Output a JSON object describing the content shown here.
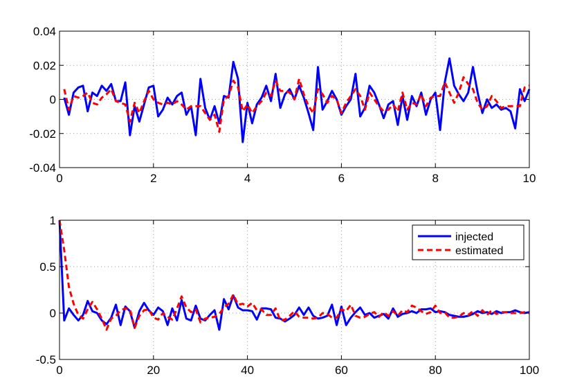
{
  "colors": {
    "injected": "#0000ff",
    "estimated": "#ff0000",
    "grid": "#9a9a9a",
    "axes": "#000000"
  },
  "chart_data": [
    {
      "type": "line",
      "xlim": [
        0,
        10
      ],
      "ylim": [
        -0.04,
        0.04
      ],
      "grid": true,
      "x_ticks": [
        0,
        2,
        4,
        6,
        8,
        10
      ],
      "x_tick_labels": [
        "0",
        "2",
        "4",
        "6",
        "8",
        "10"
      ],
      "y_ticks": [
        0.04,
        0.02,
        0,
        -0.02,
        -0.04
      ],
      "y_tick_labels": [
        "0.04",
        "0.02",
        "0",
        "-0.02",
        "-0.04"
      ],
      "x": [
        0.1,
        0.2,
        0.3,
        0.4,
        0.5,
        0.6,
        0.7,
        0.8,
        0.9,
        1.0,
        1.1,
        1.2,
        1.3,
        1.4,
        1.5,
        1.6,
        1.7,
        1.8,
        1.9,
        2.0,
        2.1,
        2.2,
        2.3,
        2.4,
        2.5,
        2.6,
        2.7,
        2.8,
        2.9,
        3.0,
        3.1,
        3.2,
        3.3,
        3.4,
        3.5,
        3.6,
        3.7,
        3.8,
        3.9,
        4.0,
        4.1,
        4.2,
        4.3,
        4.4,
        4.5,
        4.6,
        4.7,
        4.8,
        4.9,
        5.0,
        5.1,
        5.2,
        5.3,
        5.4,
        5.5,
        5.6,
        5.7,
        5.8,
        5.9,
        6.0,
        6.1,
        6.2,
        6.3,
        6.4,
        6.5,
        6.6,
        6.7,
        6.8,
        6.9,
        7.0,
        7.1,
        7.2,
        7.3,
        7.4,
        7.5,
        7.6,
        7.7,
        7.8,
        7.9,
        8.0,
        8.1,
        8.2,
        8.3,
        8.4,
        8.5,
        8.6,
        8.7,
        8.8,
        8.9,
        9.0,
        9.1,
        9.2,
        9.3,
        9.4,
        9.5,
        9.6,
        9.7,
        9.8,
        9.9,
        10.0
      ],
      "series": [
        {
          "values": [
            0.001,
            -0.009,
            0.004,
            0.007,
            0.008,
            -0.007,
            0.004,
            0.002,
            0.008,
            0.005,
            0.009,
            -0.001,
            -0.001,
            0.01,
            -0.021,
            -0.004,
            -0.013,
            -0.003,
            0.007,
            0.008,
            -0.01,
            -0.006,
            0.001,
            -0.003,
            0.002,
            0.004,
            -0.009,
            -0.004,
            -0.021,
            0.012,
            -0.005,
            -0.012,
            -0.004,
            -0.014,
            0.002,
            0.001,
            0.022,
            0.012,
            -0.025,
            -0.002,
            -0.014,
            -0.003,
            0.001,
            0.008,
            -0.001,
            0.015,
            -0.005,
            0.003,
            0.006,
            0.0,
            0.008,
            0.001,
            -0.008,
            -0.018,
            0.019,
            -0.006,
            -0.001,
            0.005,
            0.0,
            -0.009,
            -0.004,
            0.0,
            0.015,
            -0.01,
            -0.005,
            0.008,
            0.004,
            -0.003,
            -0.011,
            -0.003,
            -0.001,
            -0.015,
            0.002,
            -0.012,
            0.002,
            -0.004,
            0.004,
            -0.009,
            0.0,
            0.004,
            -0.018,
            0.01,
            0.024,
            0.008,
            0.003,
            -0.001,
            0.004,
            0.019,
            0.004,
            -0.008,
            0.0,
            -0.005,
            -0.003,
            -0.006,
            -0.005,
            -0.007,
            -0.017,
            0.006,
            -0.001,
            0.006
          ],
          "color": "#0000ff"
        },
        {
          "values": [
            0.006,
            -0.006,
            0.002,
            0.001,
            0.002,
            0.004,
            -0.002,
            -0.003,
            0.001,
            0.003,
            0.006,
            -0.001,
            -0.002,
            -0.003,
            -0.013,
            -0.002,
            -0.008,
            -0.001,
            0.005,
            0.0,
            -0.002,
            -0.003,
            -0.002,
            -0.003,
            -0.001,
            -0.003,
            -0.006,
            -0.004,
            -0.004,
            -0.004,
            -0.008,
            -0.012,
            -0.009,
            -0.019,
            0.0,
            0.002,
            0.011,
            0.007,
            -0.007,
            -0.003,
            -0.008,
            -0.004,
            -0.001,
            0.004,
            0.002,
            0.011,
            0.005,
            0.005,
            0.004,
            0.0,
            0.012,
            0.003,
            -0.004,
            -0.008,
            0.006,
            0.003,
            -0.002,
            0.002,
            0.0,
            -0.008,
            -0.002,
            0.002,
            0.006,
            0.002,
            -0.006,
            0.004,
            0.0,
            -0.004,
            -0.007,
            -0.006,
            -0.003,
            -0.007,
            0.004,
            -0.006,
            -0.002,
            -0.003,
            0.003,
            -0.004,
            0.001,
            0.002,
            0.002,
            0.01,
            0.004,
            -0.002,
            0.004,
            0.013,
            0.009,
            0.006,
            -0.002,
            -0.006,
            -0.004,
            0.002,
            -0.001,
            -0.005,
            -0.004,
            -0.004,
            -0.004,
            -0.004,
            0.007,
            0.008
          ],
          "color": "#ff0000"
        }
      ]
    },
    {
      "type": "line",
      "xlim": [
        0,
        100
      ],
      "ylim": [
        -0.5,
        1
      ],
      "grid": true,
      "x_ticks": [
        0,
        20,
        40,
        60,
        80,
        100
      ],
      "x_tick_labels": [
        "0",
        "20",
        "40",
        "60",
        "80",
        "100"
      ],
      "y_ticks": [
        1,
        0.5,
        0,
        -0.5
      ],
      "y_tick_labels": [
        "1",
        "0.5",
        "0",
        "-0.5"
      ],
      "legend": {
        "position": "top-right"
      },
      "x": [
        0,
        1,
        2,
        3,
        4,
        5,
        6,
        7,
        8,
        9,
        10,
        11,
        12,
        13,
        14,
        15,
        16,
        17,
        18,
        19,
        20,
        21,
        22,
        23,
        24,
        25,
        26,
        27,
        28,
        29,
        30,
        31,
        32,
        33,
        34,
        35,
        36,
        37,
        38,
        39,
        40,
        41,
        42,
        43,
        44,
        45,
        46,
        47,
        48,
        49,
        50,
        51,
        52,
        53,
        54,
        55,
        56,
        57,
        58,
        59,
        60,
        61,
        62,
        63,
        64,
        65,
        66,
        67,
        68,
        69,
        70,
        71,
        72,
        73,
        74,
        75,
        76,
        77,
        78,
        79,
        80,
        81,
        82,
        83,
        84,
        85,
        86,
        87,
        88,
        89,
        90,
        91,
        92,
        93,
        94,
        95,
        96,
        97,
        98,
        99,
        100
      ],
      "series": [
        {
          "name": "injected",
          "color": "#0000ff",
          "values": [
            1.0,
            -0.08,
            0.05,
            -0.02,
            -0.08,
            -0.02,
            0.13,
            0.02,
            0.0,
            -0.08,
            -0.12,
            -0.05,
            0.09,
            -0.13,
            0.07,
            0.02,
            -0.16,
            0.02,
            0.11,
            0.03,
            -0.02,
            0.06,
            0.02,
            -0.13,
            0.05,
            -0.08,
            0.14,
            -0.06,
            -0.08,
            0.08,
            -0.06,
            -0.08,
            -0.02,
            0.03,
            -0.18,
            0.15,
            0.04,
            0.19,
            0.06,
            0.03,
            0.03,
            0.02,
            -0.07,
            0.05,
            0.05,
            0.04,
            -0.05,
            -0.06,
            -0.09,
            -0.06,
            -0.02,
            0.06,
            -0.02,
            0.06,
            -0.03,
            -0.06,
            -0.05,
            -0.03,
            0.09,
            -0.13,
            0.07,
            -0.13,
            -0.05,
            0.01,
            0.06,
            -0.02,
            0.0,
            -0.05,
            -0.03,
            -0.01,
            -0.06,
            0.05,
            -0.04,
            -0.01,
            0.0,
            0.02,
            0.0,
            0.04,
            0.04,
            0.05,
            0.01,
            0.02,
            0.01,
            -0.02,
            -0.03,
            -0.04,
            -0.04,
            -0.03,
            -0.01,
            0.02,
            0.0,
            0.01,
            -0.01,
            0.02,
            0.0,
            0.01,
            0.01,
            0.03,
            0.01,
            0.0,
            0.01
          ]
        },
        {
          "name": "estimated",
          "color": "#ff0000",
          "values": [
            1.0,
            0.68,
            0.28,
            0.1,
            -0.02,
            -0.06,
            0.04,
            0.12,
            0.04,
            -0.06,
            -0.18,
            -0.06,
            -0.03,
            0.03,
            0.05,
            0.04,
            -0.16,
            -0.03,
            0.03,
            0.04,
            -0.05,
            -0.07,
            0.0,
            -0.04,
            -0.07,
            0.05,
            0.18,
            0.06,
            0.01,
            0.04,
            -0.1,
            -0.06,
            -0.05,
            -0.04,
            -0.01,
            0.06,
            0.1,
            0.2,
            0.09,
            0.1,
            0.07,
            0.11,
            0.03,
            0.04,
            -0.02,
            -0.02,
            0.05,
            -0.08,
            -0.07,
            -0.03,
            0.02,
            -0.04,
            -0.05,
            -0.05,
            -0.06,
            -0.05,
            0.0,
            -0.01,
            -0.05,
            -0.05,
            0.04,
            0.02,
            0.09,
            -0.03,
            -0.05,
            -0.04,
            -0.01,
            0.01,
            -0.04,
            0.01,
            -0.03,
            0.02,
            -0.03,
            0.03,
            0.01,
            0.08,
            0.06,
            0.02,
            -0.01,
            0.01,
            0.08,
            0.0,
            0.01,
            -0.05,
            -0.05,
            -0.04,
            0.0,
            -0.02,
            0.02,
            -0.03,
            0.03,
            -0.02,
            0.03,
            -0.01,
            0.01,
            0.01,
            0.0,
            0.0,
            0.0,
            0.01,
            0.0
          ]
        }
      ]
    }
  ]
}
